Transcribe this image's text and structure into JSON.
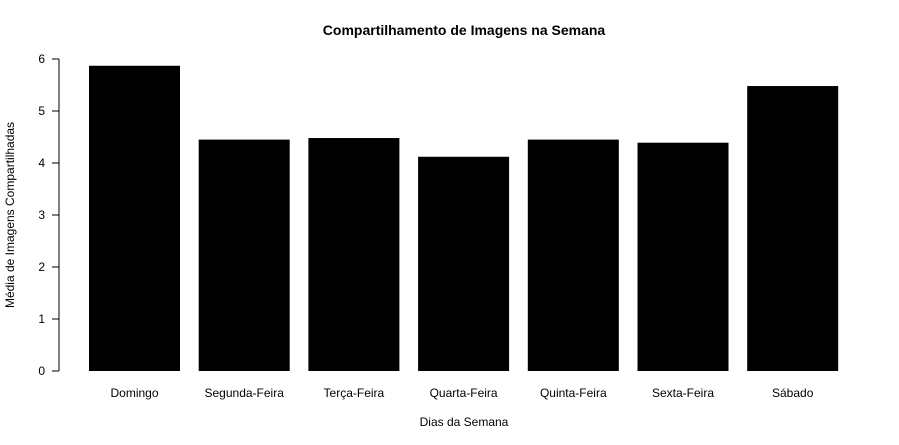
{
  "chart_data": {
    "type": "bar",
    "title": "Compartilhamento de Imagens na Semana",
    "xlabel": "Dias da Semana",
    "ylabel": "Média de Imagens Compartilhadas",
    "categories": [
      "Domingo",
      "Segunda-Feira",
      "Terça-Feira",
      "Quarta-Feira",
      "Quinta-Feira",
      "Sexta-Feira",
      "Sábado"
    ],
    "values": [
      5.87,
      4.45,
      4.48,
      4.12,
      4.45,
      4.39,
      5.48
    ],
    "ylim": [
      0,
      6
    ],
    "yticks": [
      "0",
      "1",
      "2",
      "3",
      "4",
      "5",
      "6"
    ],
    "bar_color": "#000000",
    "grid": false
  }
}
